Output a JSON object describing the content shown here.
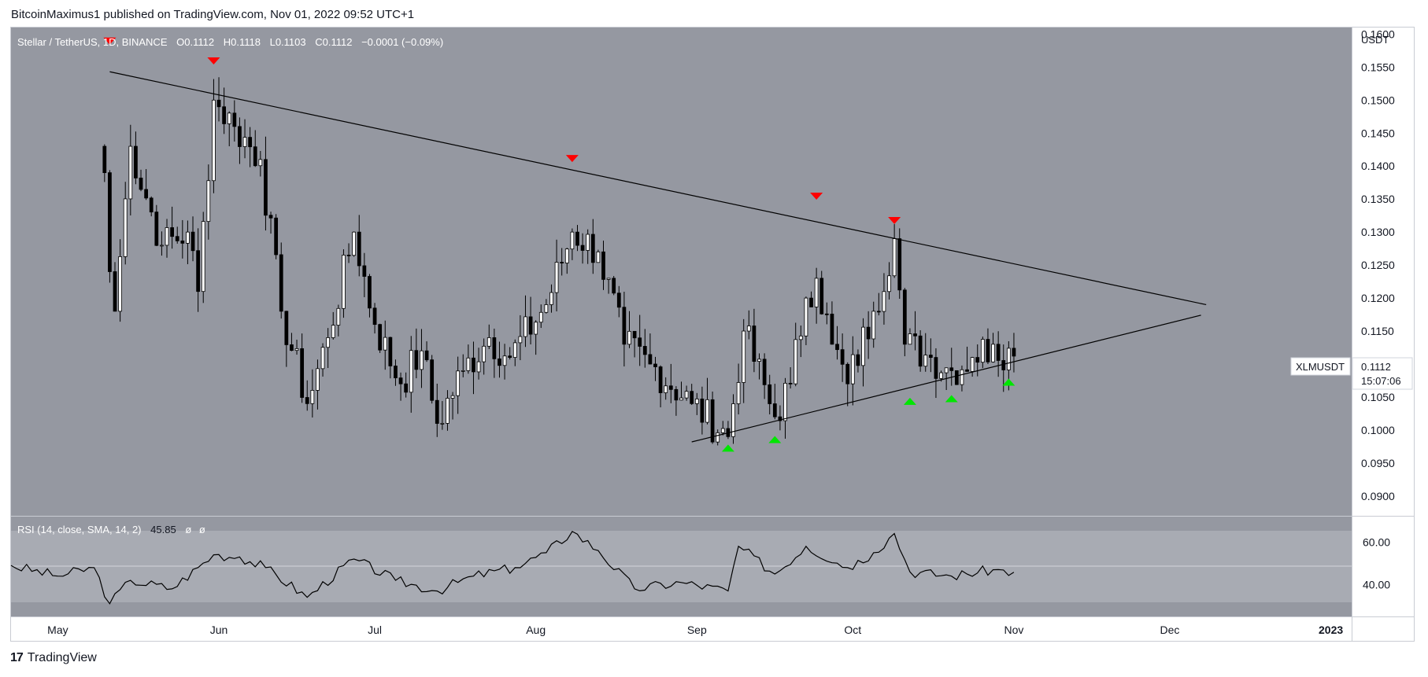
{
  "header": {
    "publisher": "BitcoinMaximus1 published on TradingView.com, Nov 01, 2022 09:52 UTC+1"
  },
  "legend": {
    "symbol": "Stellar / TetherUS, 1D, BINANCE",
    "o_label": "O",
    "o_value": "0.1112",
    "h_label": "H",
    "h_value": "0.1118",
    "l_label": "L",
    "l_value": "0.1103",
    "c_label": "C",
    "c_value": "0.1112",
    "change": "−0.0001 (−0.09%)"
  },
  "price_axis": {
    "unit": "USDT",
    "ticks": [
      "0.1600",
      "0.1550",
      "0.1500",
      "0.1450",
      "0.1400",
      "0.1350",
      "0.1300",
      "0.1250",
      "0.1200",
      "0.1150",
      "0.1100",
      "0.1050",
      "0.1000",
      "0.0950",
      "0.0900"
    ]
  },
  "last_price_label": {
    "symbol": "XLMUSDT",
    "price": "0.1112",
    "countdown": "15:07:06"
  },
  "rsi": {
    "title": "RSI (14, close, SMA, 14, 2)",
    "value": "45.85",
    "extra1": "ø",
    "extra2": "ø",
    "ticks": [
      "60.00",
      "40.00"
    ]
  },
  "time_axis": {
    "labels": [
      "May",
      "Jun",
      "Jul",
      "Aug",
      "Sep",
      "Oct",
      "Nov",
      "Dec",
      "2023"
    ]
  },
  "footer": {
    "brand": "TradingView",
    "logo_mark": "17"
  },
  "colors": {
    "main_background": "#9598a1",
    "rsi_band": "#a8abb3",
    "bull_candle": "#ffffff",
    "bear_candle": "#000000",
    "resistance_marker": "#ff0000",
    "support_marker": "#00e600"
  },
  "chart_data": {
    "type": "candlestick",
    "title": "Stellar / TetherUS, 1D, BINANCE",
    "xlabel": "",
    "ylabel": "USDT",
    "ylim": [
      0.087,
      0.161
    ],
    "x_range": [
      "2022-04-22",
      "2023-01-05"
    ],
    "trendlines": [
      {
        "name": "",
        "from": {
          "date": "2022-05-11",
          "price": 0.1543
        },
        "to": {
          "date": "2022-12-08",
          "price": 0.119
        }
      },
      {
        "name": "",
        "from": {
          "date": "2022-08-31",
          "price": 0.0982
        },
        "to": {
          "date": "2022-12-07",
          "price": 0.1174
        }
      }
    ],
    "resistance_markers": [
      {
        "date": "2022-05-11",
        "price": 0.159
      },
      {
        "date": "2022-05-31",
        "price": 0.156
      },
      {
        "date": "2022-08-08",
        "price": 0.1412
      },
      {
        "date": "2022-09-24",
        "price": 0.1355
      },
      {
        "date": "2022-10-09",
        "price": 0.1318
      }
    ],
    "support_markers": [
      {
        "date": "2022-09-07",
        "price": 0.0972
      },
      {
        "date": "2022-09-16",
        "price": 0.0985
      },
      {
        "date": "2022-10-12",
        "price": 0.1043
      },
      {
        "date": "2022-10-20",
        "price": 0.1047
      },
      {
        "date": "2022-10-31",
        "price": 0.1072
      }
    ],
    "ohlc_anchor_closes": [
      {
        "date": "2022-05-10",
        "close": 0.139
      },
      {
        "date": "2022-05-11",
        "close": 0.124
      },
      {
        "date": "2022-05-12",
        "close": 0.118
      },
      {
        "date": "2022-05-15",
        "close": 0.143
      },
      {
        "date": "2022-05-21",
        "close": 0.128
      },
      {
        "date": "2022-05-26",
        "close": 0.13
      },
      {
        "date": "2022-05-28",
        "close": 0.121
      },
      {
        "date": "2022-05-31",
        "close": 0.15
      },
      {
        "date": "2022-06-04",
        "close": 0.146
      },
      {
        "date": "2022-06-09",
        "close": 0.141
      },
      {
        "date": "2022-06-13",
        "close": 0.118
      },
      {
        "date": "2022-06-18",
        "close": 0.104
      },
      {
        "date": "2022-06-22",
        "close": 0.114
      },
      {
        "date": "2022-06-27",
        "close": 0.13
      },
      {
        "date": "2022-07-01",
        "close": 0.116
      },
      {
        "date": "2022-07-06",
        "close": 0.107
      },
      {
        "date": "2022-07-10",
        "close": 0.112
      },
      {
        "date": "2022-07-13",
        "close": 0.101
      },
      {
        "date": "2022-07-18",
        "close": 0.109
      },
      {
        "date": "2022-07-23",
        "close": 0.114
      },
      {
        "date": "2022-07-27",
        "close": 0.111
      },
      {
        "date": "2022-08-03",
        "close": 0.119
      },
      {
        "date": "2022-08-08",
        "close": 0.13
      },
      {
        "date": "2022-08-13",
        "close": 0.127
      },
      {
        "date": "2022-08-18",
        "close": 0.113
      },
      {
        "date": "2022-08-23",
        "close": 0.11
      },
      {
        "date": "2022-08-31",
        "close": 0.104
      },
      {
        "date": "2022-09-07",
        "close": 0.099
      },
      {
        "date": "2022-09-10",
        "close": 0.115
      },
      {
        "date": "2022-09-16",
        "close": 0.102
      },
      {
        "date": "2022-09-19",
        "close": 0.107
      },
      {
        "date": "2022-09-22",
        "close": 0.12
      },
      {
        "date": "2022-09-24",
        "close": 0.123
      },
      {
        "date": "2022-09-27",
        "close": 0.113
      },
      {
        "date": "2022-09-30",
        "close": 0.107
      },
      {
        "date": "2022-10-05",
        "close": 0.118
      },
      {
        "date": "2022-10-09",
        "close": 0.129
      },
      {
        "date": "2022-10-11",
        "close": 0.113
      },
      {
        "date": "2022-10-16",
        "close": 0.111
      },
      {
        "date": "2022-10-20",
        "close": 0.109
      },
      {
        "date": "2022-10-24",
        "close": 0.111
      },
      {
        "date": "2022-10-28",
        "close": 0.113
      },
      {
        "date": "2022-11-01",
        "close": 0.1112
      }
    ],
    "rsi_series": {
      "name": "RSI (14, close, SMA, 14, 2)",
      "ylim": [
        25,
        72
      ],
      "values": [
        {
          "date": "2022-04-22",
          "rsi": 49
        },
        {
          "date": "2022-05-01",
          "rsi": 44
        },
        {
          "date": "2022-05-08",
          "rsi": 48
        },
        {
          "date": "2022-05-11",
          "rsi": 31
        },
        {
          "date": "2022-05-15",
          "rsi": 42
        },
        {
          "date": "2022-05-23",
          "rsi": 38
        },
        {
          "date": "2022-05-31",
          "rsi": 54
        },
        {
          "date": "2022-06-05",
          "rsi": 53
        },
        {
          "date": "2022-06-10",
          "rsi": 48
        },
        {
          "date": "2022-06-18",
          "rsi": 34
        },
        {
          "date": "2022-06-27",
          "rsi": 52
        },
        {
          "date": "2022-07-05",
          "rsi": 42
        },
        {
          "date": "2022-07-13",
          "rsi": 37
        },
        {
          "date": "2022-07-20",
          "rsi": 44
        },
        {
          "date": "2022-07-28",
          "rsi": 48
        },
        {
          "date": "2022-08-03",
          "rsi": 55
        },
        {
          "date": "2022-08-08",
          "rsi": 65
        },
        {
          "date": "2022-08-13",
          "rsi": 56
        },
        {
          "date": "2022-08-20",
          "rsi": 38
        },
        {
          "date": "2022-08-29",
          "rsi": 41
        },
        {
          "date": "2022-09-07",
          "rsi": 37
        },
        {
          "date": "2022-09-09",
          "rsi": 58
        },
        {
          "date": "2022-09-16",
          "rsi": 45
        },
        {
          "date": "2022-09-22",
          "rsi": 58
        },
        {
          "date": "2022-09-30",
          "rsi": 48
        },
        {
          "date": "2022-10-05",
          "rsi": 55
        },
        {
          "date": "2022-10-09",
          "rsi": 64
        },
        {
          "date": "2022-10-12",
          "rsi": 46
        },
        {
          "date": "2022-10-20",
          "rsi": 44
        },
        {
          "date": "2022-10-28",
          "rsi": 47
        },
        {
          "date": "2022-11-01",
          "rsi": 45.85
        }
      ]
    }
  }
}
